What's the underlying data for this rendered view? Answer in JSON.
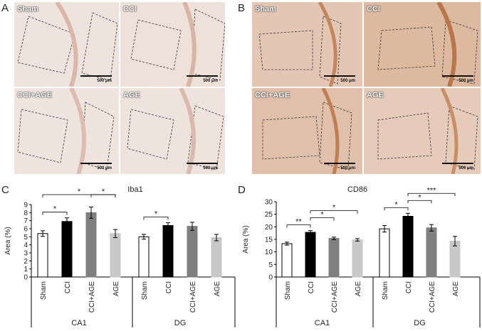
{
  "panels": {
    "A": {
      "letter": "A",
      "tiles": [
        {
          "label": "Sham",
          "scale": "500 μm"
        },
        {
          "label": "CCI",
          "scale": "500 μm"
        },
        {
          "label": "CCI+AGE",
          "scale": "500 μm"
        },
        {
          "label": "AGE",
          "scale": "500 μm"
        }
      ]
    },
    "B": {
      "letter": "B",
      "tiles": [
        {
          "label": "Sham",
          "scale": "500 μm"
        },
        {
          "label": "CCI",
          "scale": "500 μm"
        },
        {
          "label": "CCI+AGE",
          "scale": "500 μm"
        },
        {
          "label": "AGE",
          "scale": "500 μm"
        }
      ]
    },
    "C": {
      "letter": "C"
    },
    "D": {
      "letter": "D"
    }
  },
  "colors": {
    "sham": "#ffffff",
    "cci": "#000000",
    "cci_age": "#808080",
    "age": "#c8c8c8",
    "stain_light": "#efe2dc",
    "stain_dark": "#c9865a"
  },
  "chart_data": [
    {
      "type": "bar",
      "title": "Iba1",
      "ylabel": "Area (%)",
      "ylim": [
        0,
        9
      ],
      "yticks": [
        0,
        1,
        2,
        3,
        4,
        5,
        6,
        7,
        8,
        9
      ],
      "groups": [
        "CA1",
        "DG"
      ],
      "categories": [
        "Sham",
        "CCI",
        "CCI+AGE",
        "AGE"
      ],
      "series": [
        {
          "group": "CA1",
          "values": [
            5.4,
            6.9,
            8.0,
            5.4
          ],
          "errors": [
            0.35,
            0.45,
            0.7,
            0.5
          ]
        },
        {
          "group": "DG",
          "values": [
            5.0,
            6.4,
            6.3,
            4.9
          ],
          "errors": [
            0.3,
            0.35,
            0.5,
            0.4
          ]
        }
      ],
      "significance": [
        {
          "group": "CA1",
          "from": 0,
          "to": 1,
          "label": "*"
        },
        {
          "group": "CA1",
          "from": 0,
          "to": 3,
          "label": "*"
        },
        {
          "group": "CA1",
          "from": 2,
          "to": 3,
          "label": "*"
        },
        {
          "group": "DG",
          "from": 0,
          "to": 1,
          "label": "*"
        }
      ]
    },
    {
      "type": "bar",
      "title": "CD86",
      "ylabel": "Area (%)",
      "ylim": [
        0,
        30
      ],
      "yticks": [
        0,
        5,
        10,
        15,
        20,
        25,
        30
      ],
      "groups": [
        "CA1",
        "DG"
      ],
      "categories": [
        "Sham",
        "CCI",
        "CCI+AGE",
        "AGE"
      ],
      "series": [
        {
          "group": "CA1",
          "values": [
            13.3,
            17.8,
            15.4,
            14.8
          ],
          "errors": [
            0.6,
            0.7,
            0.5,
            0.5
          ]
        },
        {
          "group": "DG",
          "values": [
            19.2,
            24.2,
            19.6,
            14.3
          ],
          "errors": [
            1.3,
            1.2,
            1.3,
            1.9
          ]
        }
      ],
      "significance": [
        {
          "group": "CA1",
          "from": 0,
          "to": 1,
          "label": "**"
        },
        {
          "group": "CA1",
          "from": 1,
          "to": 2,
          "label": "*"
        },
        {
          "group": "CA1",
          "from": 1,
          "to": 3,
          "label": "*"
        },
        {
          "group": "DG",
          "from": 0,
          "to": 1,
          "label": "*"
        },
        {
          "group": "DG",
          "from": 1,
          "to": 2,
          "label": "*"
        },
        {
          "group": "DG",
          "from": 1,
          "to": 3,
          "label": "***"
        }
      ]
    }
  ]
}
